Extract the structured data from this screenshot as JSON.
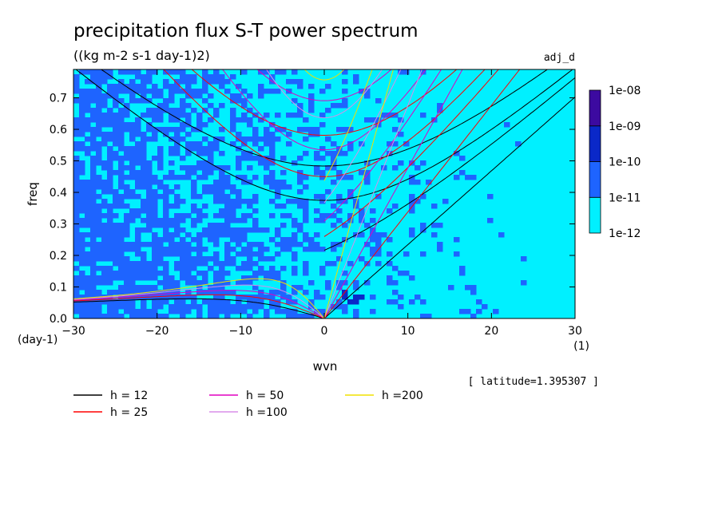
{
  "chart_data": {
    "type": "heatmap",
    "title": "precipitation flux S-T power spectrum",
    "subtitle": "((kg m-2 s-1 day-1)2)",
    "run_label": "adj_d",
    "xlabel": "wvn",
    "ylabel": "freq",
    "x_unit": "(1)",
    "y_unit": "(day-1)",
    "xlim": [
      -30,
      30
    ],
    "ylim": [
      0,
      0.79
    ],
    "xticks": [
      -30,
      -20,
      -10,
      0,
      10,
      20,
      30
    ],
    "yticks": [
      0.0,
      0.1,
      0.2,
      0.3,
      0.4,
      0.5,
      0.6,
      0.7
    ],
    "annotation": "[ latitude=1.395307 ]",
    "colorbar": {
      "levels": [
        "1e-12",
        "1e-11",
        "1e-10",
        "1e-09",
        "1e-08"
      ],
      "colors": [
        "#00f0ff",
        "#1e64ff",
        "#0a28c8",
        "#3c0aa0"
      ]
    },
    "field_note": "Power mostly between 1e-12 and 1e-10 over the domain, small patches above 1e-09 near wvn 2-4, freq 0.08",
    "dispersion_curves": [
      {
        "label": "h = 12",
        "h": 12,
        "color": "#000000"
      },
      {
        "label": "h = 25",
        "h": 25,
        "color": "#ff0000"
      },
      {
        "label": "h = 50",
        "h": 50,
        "color": "#e000c0"
      },
      {
        "label": "h =100",
        "h": 100,
        "color": "#d88ee8"
      },
      {
        "label": "h =200",
        "h": 200,
        "color": "#f0e000"
      }
    ]
  }
}
